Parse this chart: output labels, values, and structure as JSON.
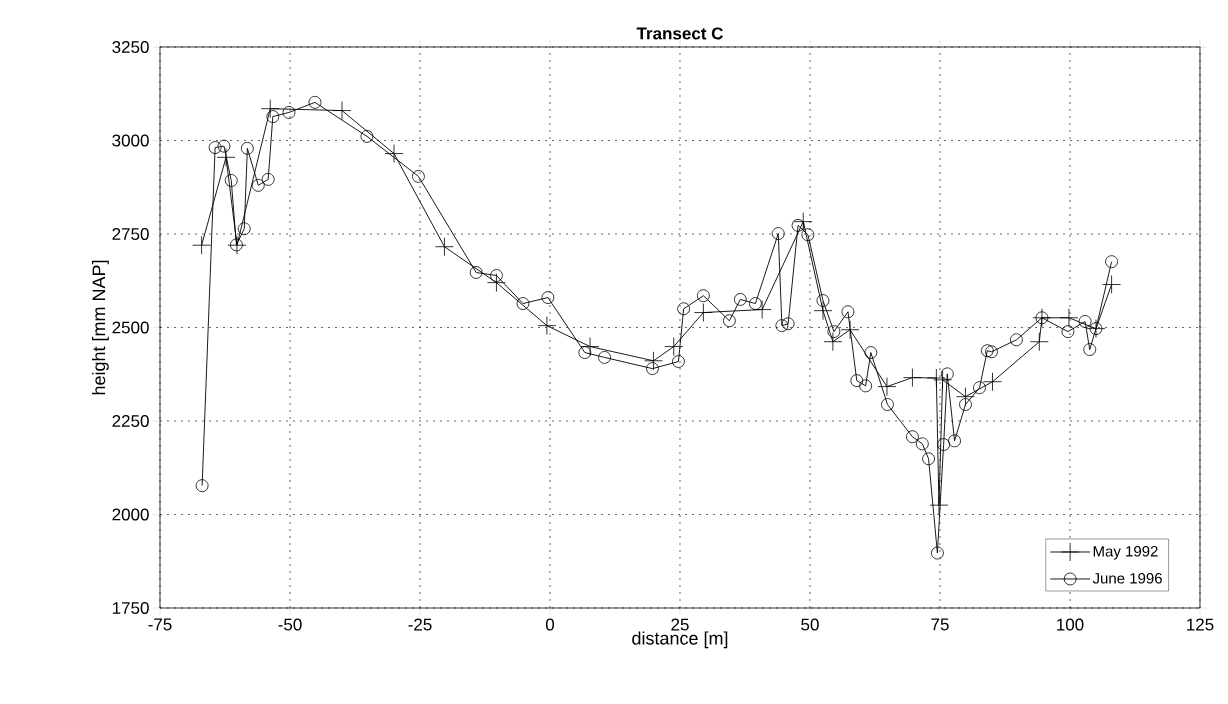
{
  "chart_data": {
    "type": "line",
    "title": "Transect C",
    "xlabel": "distance [m]",
    "ylabel": "height [mm NAP]",
    "xlim": [
      -75,
      125
    ],
    "xticks": [
      -75,
      -50,
      -25,
      0,
      25,
      50,
      75,
      100,
      125
    ],
    "ylim": [
      1750,
      3250
    ],
    "yticks": [
      1750,
      2000,
      2250,
      2500,
      2750,
      3000,
      3250
    ],
    "grid": true,
    "legend": "bottom right",
    "line_style": "solid",
    "series": [
      {
        "name": "May 1992",
        "color": "#000000",
        "marker": "cross",
        "x": [
          -67,
          -62.3,
          -60.2,
          -53.8,
          -40,
          -30,
          -20.3,
          -10.3,
          -0.6,
          7.7,
          19.9,
          23.8,
          29.5,
          40.8,
          48.7,
          52.5,
          54.4,
          57.7,
          64.8,
          69.7,
          74.3,
          74.8,
          75.5,
          79.9,
          85.1,
          94.1,
          94.6,
          99.8,
          105,
          108
        ],
        "values": [
          2720,
          2955,
          2720,
          3085,
          3080,
          2965,
          2716,
          2620,
          2505,
          2449,
          2411,
          2449,
          2540,
          2548,
          2783,
          2545,
          2462,
          2494,
          2342,
          2366,
          2365,
          2025,
          2360,
          2315,
          2355,
          2462,
          2526,
          2526,
          2497,
          2615
        ]
      },
      {
        "name": "June 1996",
        "color": "#000000",
        "marker": "circle",
        "x": [
          -66.9,
          -64.4,
          -62.7,
          -61.3,
          -60.3,
          -58.8,
          -58.2,
          -56.1,
          -54.2,
          -53.3,
          -50.2,
          -45.2,
          -35.2,
          -25.3,
          -14.2,
          -10.3,
          -5.2,
          -0.4,
          6.7,
          10.5,
          19.7,
          24.7,
          25.7,
          29.5,
          34.5,
          36.6,
          39.5,
          43.9,
          44.6,
          45.8,
          47.7,
          49.6,
          52.5,
          54.6,
          57.3,
          59.0,
          60.7,
          61.7,
          64.9,
          69.7,
          71.6,
          72.8,
          74.5,
          75.7,
          76.4,
          77.8,
          79.9,
          82.6,
          84.1,
          84.9,
          89.7,
          94.6,
          99.6,
          102.9,
          103.8,
          105,
          108
        ],
        "values": [
          2077,
          2981,
          2985,
          2893,
          2721,
          2764,
          2979,
          2880,
          2896,
          3064,
          3075,
          3102,
          3011,
          2904,
          2647,
          2639,
          2564,
          2580,
          2433,
          2420,
          2390,
          2409,
          2550,
          2585,
          2518,
          2575,
          2564,
          2751,
          2505,
          2510,
          2773,
          2748,
          2572,
          2489,
          2542,
          2358,
          2344,
          2433,
          2294,
          2208,
          2189,
          2149,
          1897,
          2187,
          2376,
          2197,
          2294,
          2339,
          2438,
          2435,
          2467,
          2526,
          2489,
          2516,
          2441,
          2497,
          2676
        ]
      }
    ]
  }
}
